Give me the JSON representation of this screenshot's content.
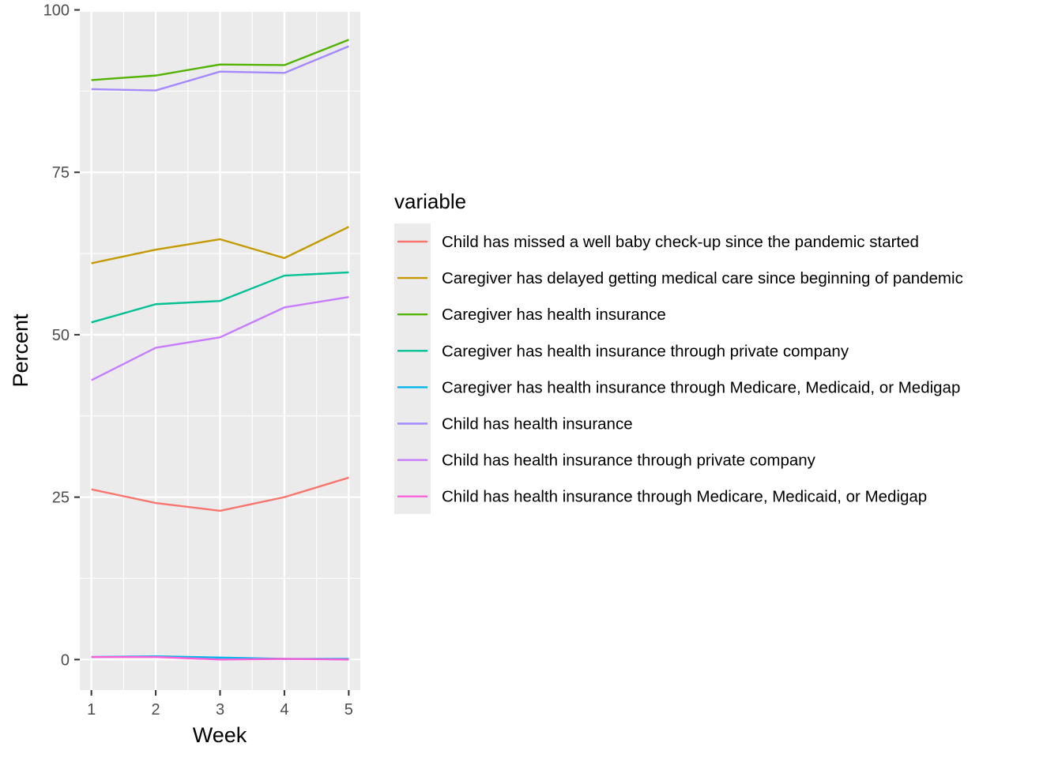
{
  "chart_data": {
    "type": "line",
    "xlabel": "Week",
    "ylabel": "Percent",
    "x": [
      1,
      2,
      3,
      4,
      5
    ],
    "xlim": [
      0.82,
      5.18
    ],
    "ylim": [
      -4.7,
      99.7
    ],
    "x_ticks": [
      1,
      2,
      3,
      4,
      5
    ],
    "y_ticks": [
      0,
      25,
      50,
      75,
      100
    ],
    "grid": true,
    "legend_title": "variable",
    "legend_position": "right",
    "series": [
      {
        "name": "Child has missed a well baby check-up since the pandemic started",
        "color": "#F8766D",
        "values": [
          26.2,
          24.1,
          22.9,
          25.0,
          28.0
        ]
      },
      {
        "name": "Caregiver has delayed getting medical care since beginning of pandemic",
        "color": "#C49A00",
        "values": [
          61.0,
          63.1,
          64.7,
          61.8,
          66.6
        ]
      },
      {
        "name": "Caregiver has health insurance",
        "color": "#53B400",
        "values": [
          89.2,
          89.9,
          91.6,
          91.5,
          95.4
        ]
      },
      {
        "name": "Caregiver has health insurance through private company",
        "color": "#00C094",
        "values": [
          51.9,
          54.7,
          55.2,
          59.1,
          59.6
        ]
      },
      {
        "name": "Caregiver has health insurance through Medicare, Medicaid, or Medigap",
        "color": "#00B6EB",
        "values": [
          0.4,
          0.5,
          0.3,
          0.1,
          0.1
        ]
      },
      {
        "name": "Child has health insurance",
        "color": "#A58AFF",
        "values": [
          87.8,
          87.6,
          90.5,
          90.3,
          94.4
        ]
      },
      {
        "name": "Child has health insurance through private company",
        "color": "#C77CFF",
        "values": [
          43.0,
          48.0,
          49.6,
          54.2,
          55.8
        ]
      },
      {
        "name": "Child has health insurance through Medicare, Medicaid, or Medigap",
        "color": "#FB61D7",
        "values": [
          0.4,
          0.4,
          0.0,
          0.1,
          0.0
        ]
      }
    ]
  }
}
